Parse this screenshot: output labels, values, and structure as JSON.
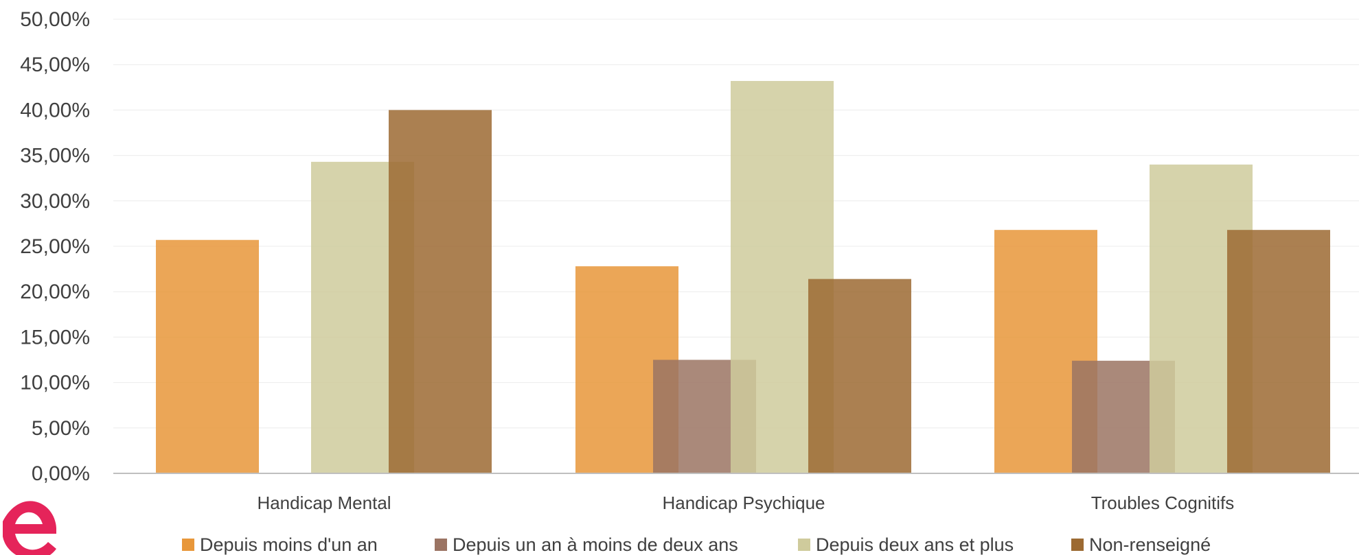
{
  "chart_data": {
    "type": "bar",
    "categories": [
      "Handicap Mental",
      "Handicap Psychique",
      "Troubles Cognitifs"
    ],
    "series": [
      {
        "name": "Depuis moins d'un an",
        "color": "#E8973A",
        "values": [
          25.7,
          22.8,
          26.8
        ]
      },
      {
        "name": "Depuis un an à moins de deux ans",
        "color": "#9B7463",
        "values": [
          0,
          12.5,
          12.4
        ]
      },
      {
        "name": "Depuis deux ans et plus",
        "color": "#CFCB9C",
        "values": [
          34.3,
          43.2,
          34.0
        ]
      },
      {
        "name": "Non-renseigné",
        "color": "#9C6A32",
        "values": [
          40.0,
          21.4,
          26.8
        ]
      }
    ],
    "y_ticks": [
      "0,00%",
      "5,00%",
      "10,00%",
      "15,00%",
      "20,00%",
      "25,00%",
      "30,00%",
      "35,00%",
      "40,00%",
      "45,00%",
      "50,00%"
    ],
    "ylim": [
      0,
      50
    ],
    "grid": true,
    "legend_position": "bottom",
    "title": "",
    "xlabel": "",
    "ylabel": ""
  },
  "logo": {
    "name": "logo-mark-icon",
    "color": "#E5245A"
  }
}
